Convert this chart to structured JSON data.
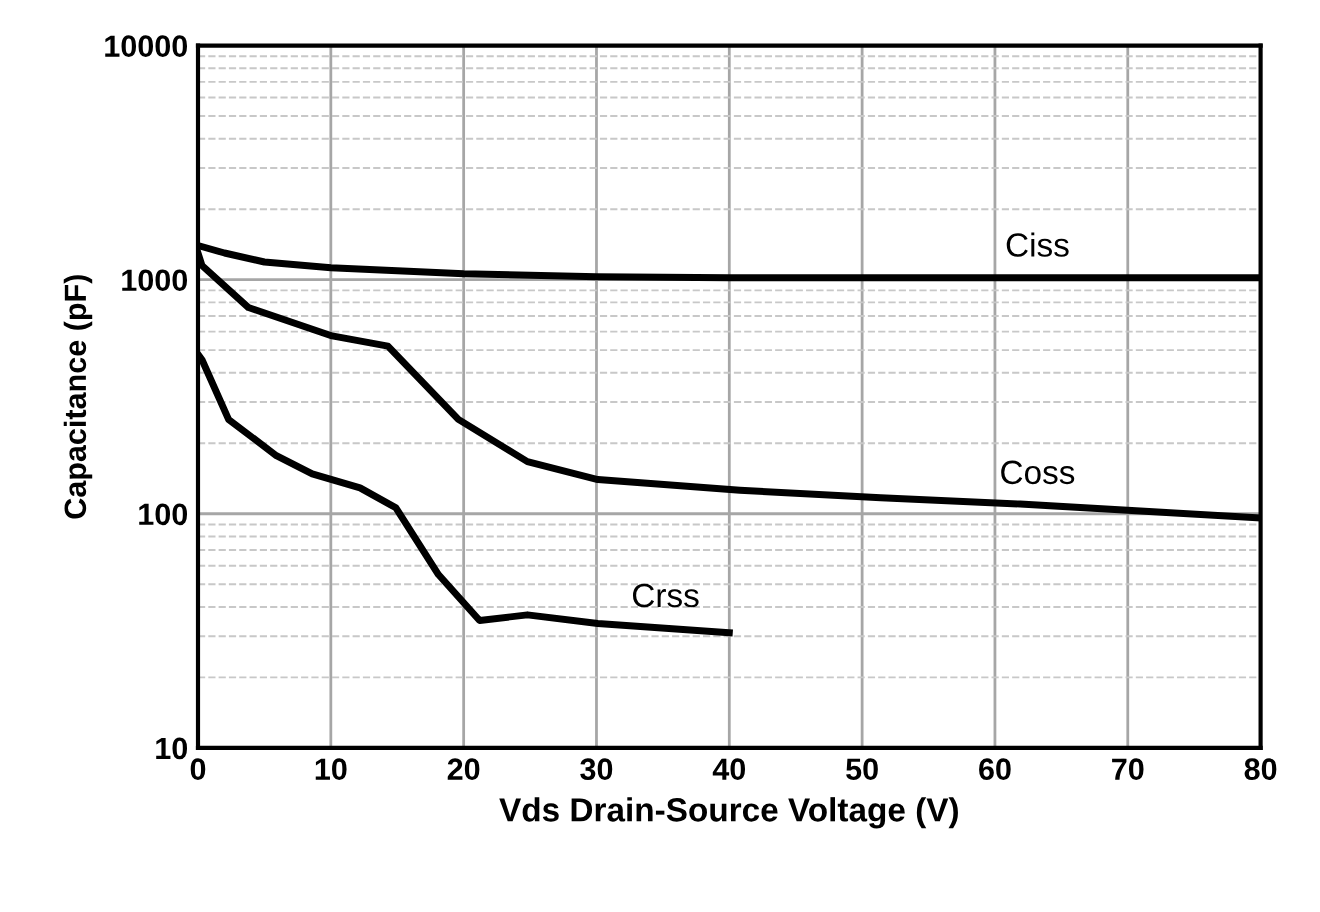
{
  "chart_data": {
    "type": "line",
    "xlabel": "Vds Drain-Source Voltage (V)",
    "ylabel": "Capacitance (pF)",
    "x": [
      0,
      0.3,
      3.8,
      10.1,
      14.3,
      19.6,
      24.8,
      30.1,
      40.8,
      51.4,
      61.9,
      80
    ],
    "series": [
      {
        "name": "Ciss",
        "color": "#000000",
        "x": [
          0,
          2,
          5,
          10,
          20,
          30,
          40,
          50,
          60,
          70,
          80
        ],
        "values": [
          1400,
          1300,
          1190,
          1125,
          1060,
          1030,
          1020,
          1020,
          1020,
          1020,
          1020
        ]
      },
      {
        "name": "Coss",
        "color": "#000000",
        "values": [
          1300,
          1150,
          760,
          575,
          520,
          253,
          167,
          140,
          126,
          117,
          110,
          96
        ]
      },
      {
        "name": "Crss",
        "color": "#000000",
        "x": [
          0,
          0.3,
          2.3,
          5.9,
          8.6,
          12.2,
          14.9,
          18.1,
          21.2,
          24.8,
          30.1,
          40
        ],
        "values": [
          480,
          455,
          253,
          177,
          148,
          129,
          106,
          55,
          35,
          37,
          34,
          31
        ]
      }
    ],
    "log": "y",
    "xlim": [
      0,
      80
    ],
    "xticks": [
      0,
      10,
      20,
      30,
      40,
      50,
      60,
      70,
      80
    ],
    "ylim": [
      10,
      10000
    ],
    "yticks": [
      10,
      100,
      1000,
      10000
    ],
    "grid": true,
    "legend": false,
    "marker": "none",
    "line_style": "solid"
  }
}
